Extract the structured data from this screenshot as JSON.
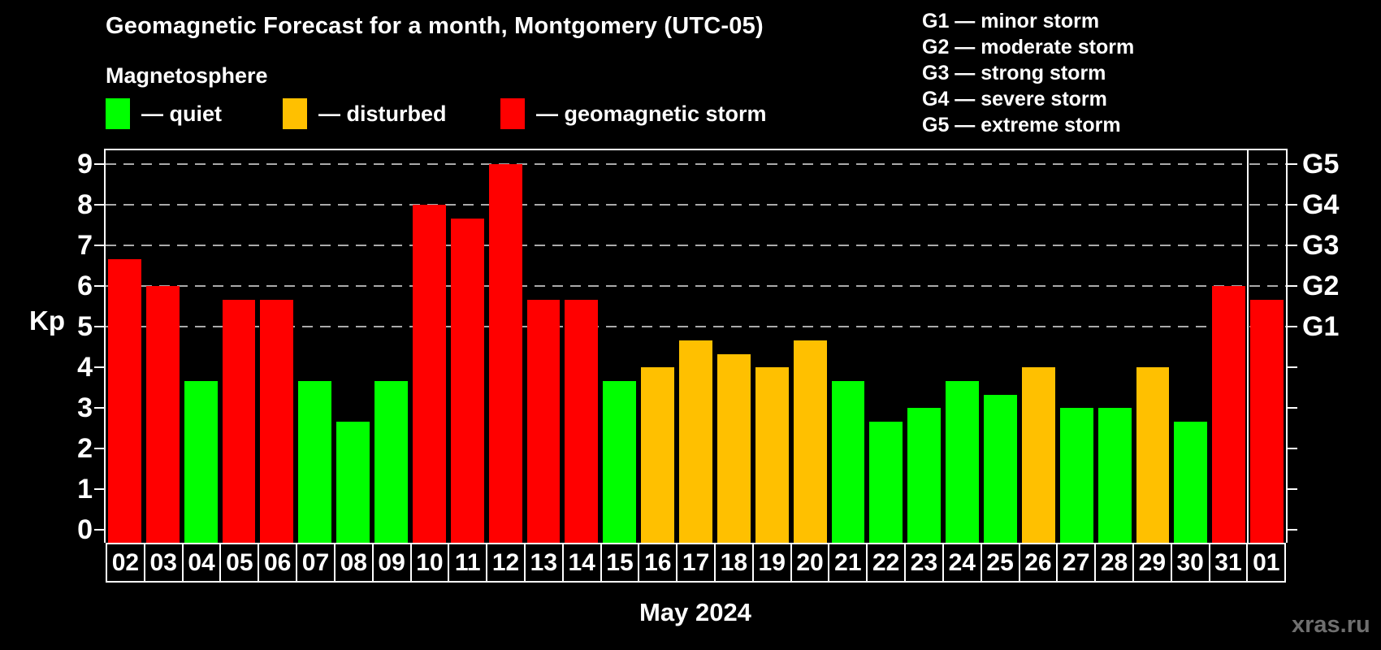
{
  "title": "Geomagnetic Forecast for a month, Montgomery (UTC-05)",
  "subtitle": "Magnetosphere",
  "legend": {
    "quiet_label": "— quiet",
    "disturbed_label": "— disturbed",
    "storm_label": "— geomagnetic storm"
  },
  "g_legend": [
    "G1 — minor storm",
    "G2 — moderate storm",
    "G3 — strong storm",
    "G4 — severe storm",
    "G5 — extreme storm"
  ],
  "y_axis_title": "Kp",
  "x_axis_title": "May 2024",
  "watermark": "xras.ru",
  "colors": {
    "background": "#000000",
    "quiet": "#00ff00",
    "disturbed": "#ffc000",
    "storm": "#ff0000",
    "grid": "#aaaaaa",
    "frame": "#ffffff",
    "watermark": "#6f6f6f"
  },
  "chart_data": {
    "type": "bar",
    "title": "Geomagnetic Forecast for a month, Montgomery (UTC-05)",
    "xlabel": "May 2024",
    "ylabel": "Kp",
    "ylim": [
      0,
      9
    ],
    "grid": "dashed horizontal lines at Kp 5..9 (G1..G5)",
    "legend_position": "top",
    "categories": [
      "02",
      "03",
      "04",
      "05",
      "06",
      "07",
      "08",
      "09",
      "10",
      "11",
      "12",
      "13",
      "14",
      "15",
      "16",
      "17",
      "18",
      "19",
      "20",
      "21",
      "22",
      "23",
      "24",
      "25",
      "26",
      "27",
      "28",
      "29",
      "30",
      "31",
      "01"
    ],
    "values": [
      6.67,
      6.0,
      3.67,
      5.67,
      5.67,
      3.67,
      2.67,
      3.67,
      8.0,
      7.67,
      9.0,
      5.67,
      5.67,
      3.67,
      4.0,
      4.67,
      4.33,
      4.0,
      4.67,
      3.67,
      2.67,
      3.0,
      3.67,
      3.33,
      4.0,
      3.0,
      3.0,
      4.0,
      2.67,
      6.0,
      5.67
    ],
    "status": [
      "storm",
      "storm",
      "quiet",
      "storm",
      "storm",
      "quiet",
      "quiet",
      "quiet",
      "storm",
      "storm",
      "storm",
      "storm",
      "storm",
      "quiet",
      "disturbed",
      "disturbed",
      "disturbed",
      "disturbed",
      "disturbed",
      "quiet",
      "quiet",
      "quiet",
      "quiet",
      "quiet",
      "disturbed",
      "quiet",
      "quiet",
      "disturbed",
      "quiet",
      "storm",
      "storm"
    ],
    "y_ticks": [
      0,
      1,
      2,
      3,
      4,
      5,
      6,
      7,
      8,
      9
    ],
    "g_levels": {
      "G1": 5,
      "G2": 6,
      "G3": 7,
      "G4": 8,
      "G5": 9
    },
    "month_separator_after_index": 29
  }
}
